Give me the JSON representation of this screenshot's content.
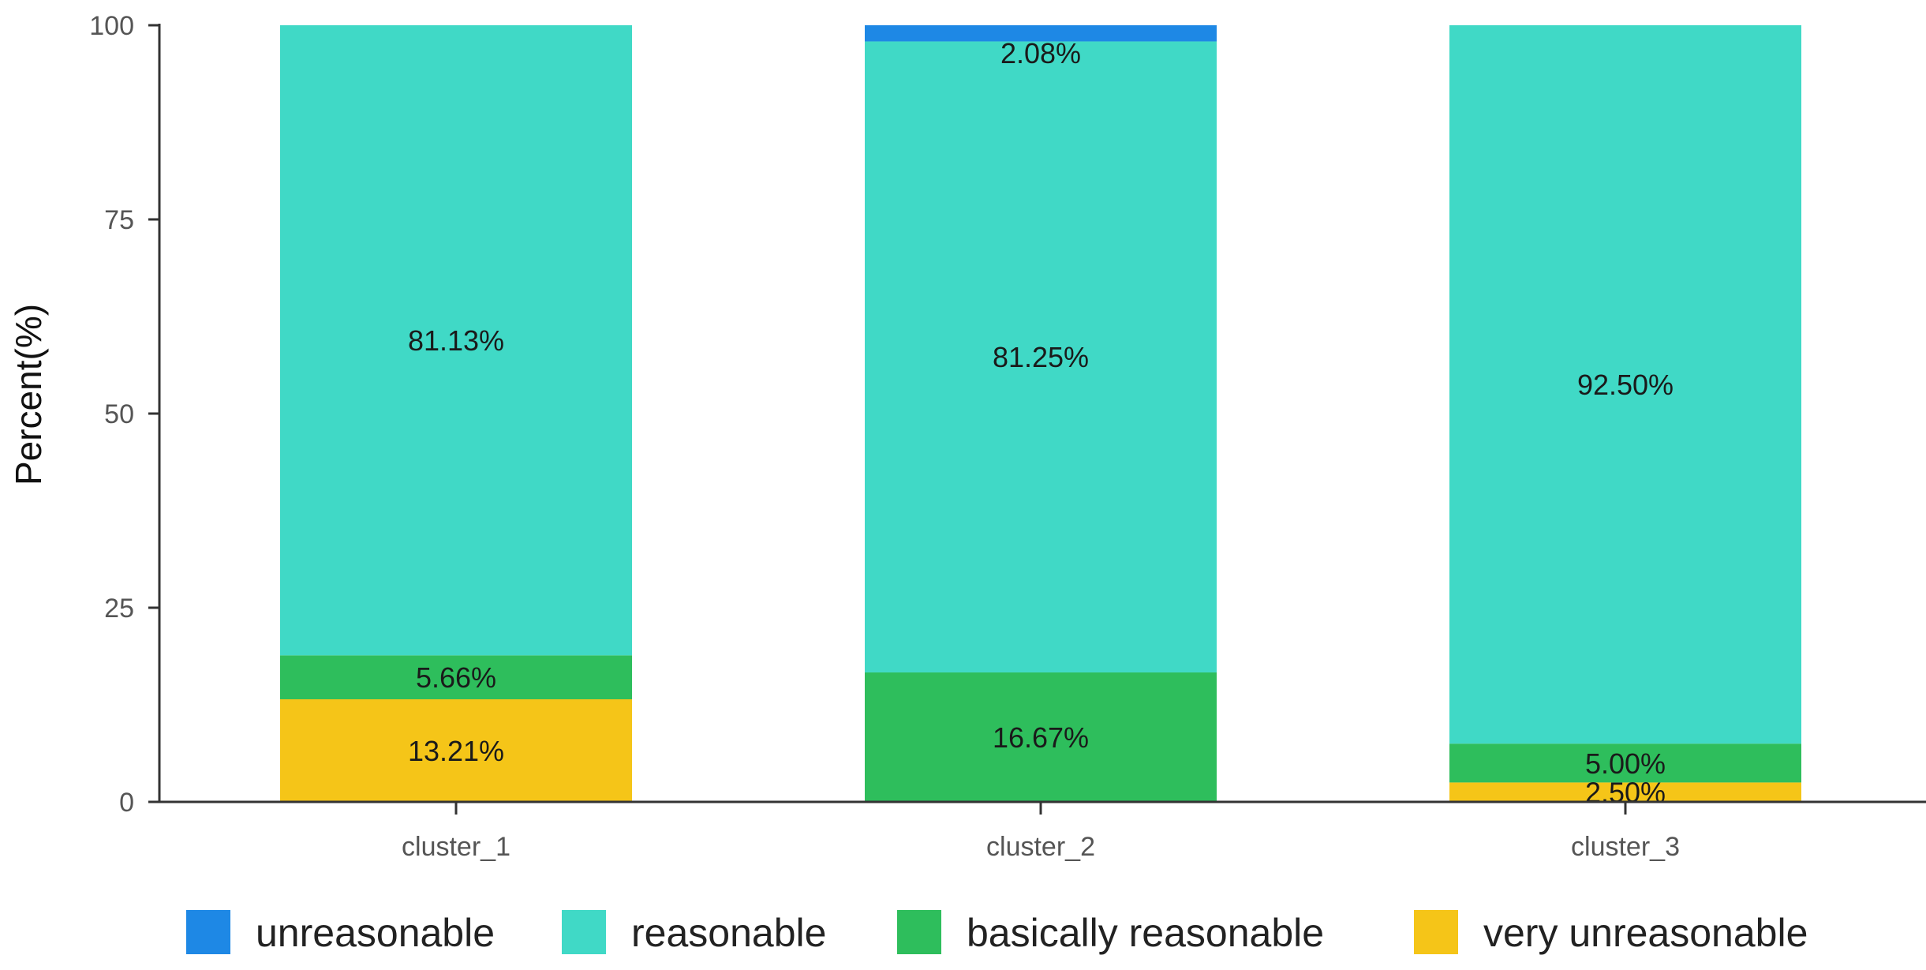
{
  "chart_data": {
    "type": "bar",
    "stacked": true,
    "categories": [
      "cluster_1",
      "cluster_2",
      "cluster_3"
    ],
    "ylabel": "Percent(%)",
    "xlabel": "",
    "ylim": [
      0,
      100
    ],
    "yticks": [
      0,
      25,
      50,
      75,
      100
    ],
    "legend_position": "bottom",
    "series": [
      {
        "name": "very unreasonable",
        "color": "#F5C518",
        "values": [
          13.21,
          0,
          2.5
        ],
        "labels": [
          "13.21%",
          "",
          "2.50%"
        ]
      },
      {
        "name": "basically reasonable",
        "color": "#2EBE5C",
        "values": [
          5.66,
          16.67,
          5.0
        ],
        "labels": [
          "5.66%",
          "16.67%",
          "5.00%"
        ]
      },
      {
        "name": "reasonable",
        "color": "#40D9C6",
        "values": [
          81.13,
          81.25,
          92.5
        ],
        "labels": [
          "81.13%",
          "81.25%",
          "92.50%"
        ]
      },
      {
        "name": "unreasonable",
        "color": "#1E88E5",
        "values": [
          0,
          2.08,
          0
        ],
        "labels": [
          "",
          "2.08%",
          ""
        ]
      }
    ],
    "legend_order": [
      "unreasonable",
      "reasonable",
      "basically reasonable",
      "very unreasonable"
    ]
  }
}
